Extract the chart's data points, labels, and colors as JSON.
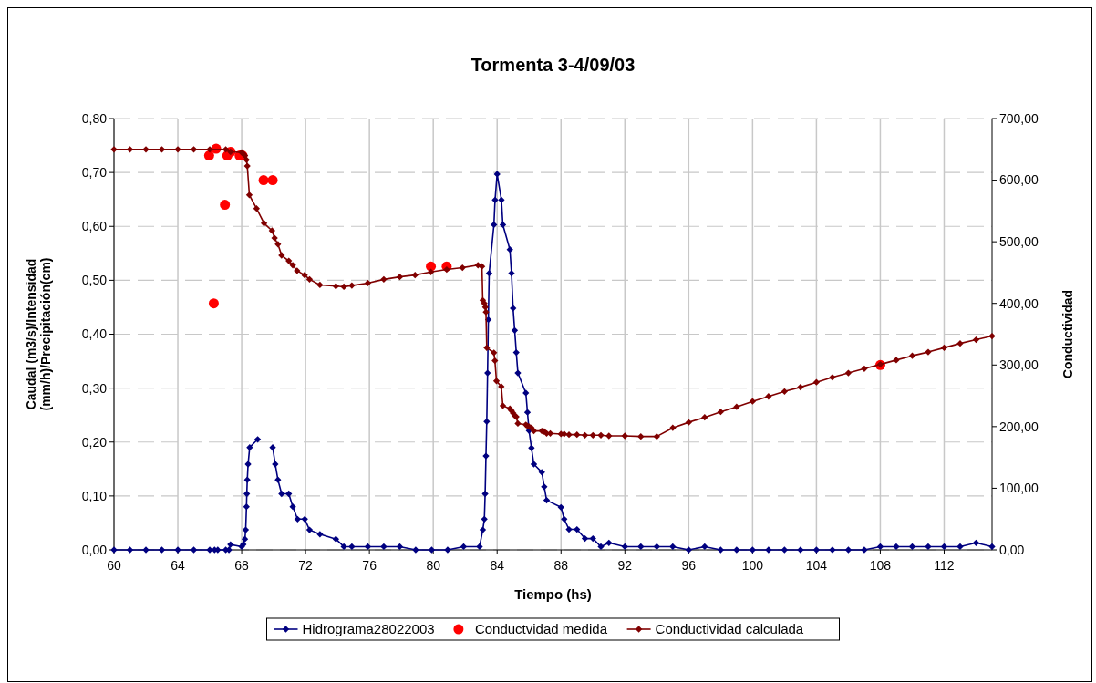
{
  "chart_data": {
    "type": "line",
    "title": "Tormenta 3-4/09/03",
    "xlabel": "Tiempo (hs)",
    "ylabel": "Caudal (m3/s)/Intensidad (mm/h)/Precipitación(cm)",
    "y2label": "Conductividad",
    "xlim": [
      60,
      115
    ],
    "xticks": [
      60,
      64,
      68,
      72,
      76,
      80,
      84,
      88,
      92,
      96,
      100,
      104,
      108,
      112
    ],
    "ylim": [
      0,
      0.8
    ],
    "yticks": [
      {
        "value": 0,
        "label": "0,00"
      },
      {
        "value": 0.1,
        "label": "0,10"
      },
      {
        "value": 0.2,
        "label": "0,20"
      },
      {
        "value": 0.3,
        "label": "0,30"
      },
      {
        "value": 0.4,
        "label": "0,40"
      },
      {
        "value": 0.5,
        "label": "0,50"
      },
      {
        "value": 0.6,
        "label": "0,60"
      },
      {
        "value": 0.7,
        "label": "0,70"
      },
      {
        "value": 0.8,
        "label": "0,80"
      }
    ],
    "y2lim": [
      0,
      700
    ],
    "y2ticks": [
      {
        "value": 0,
        "label": "0,00"
      },
      {
        "value": 100,
        "label": "100,00"
      },
      {
        "value": 200,
        "label": "200,00"
      },
      {
        "value": 300,
        "label": "300,00"
      },
      {
        "value": 400,
        "label": "400,00"
      },
      {
        "value": 500,
        "label": "500,00"
      },
      {
        "value": 600,
        "label": "600,00"
      },
      {
        "value": 700,
        "label": "700,00"
      }
    ],
    "grid": true,
    "legend": "bottom",
    "series": [
      {
        "name": "Hidrograma28022003",
        "color": "#000080",
        "marker": "diamond",
        "x": [
          60,
          61,
          62,
          63,
          64,
          65,
          66,
          66.3,
          66.5,
          67,
          67.2,
          67.3,
          68,
          68.1,
          68.2,
          68.25,
          68.3,
          68.32,
          68.35,
          68.4,
          68.5,
          69,
          69.5,
          69.94,
          70.1,
          70.27,
          70.5,
          70.95,
          71.2,
          71.5,
          71.95,
          72.25,
          72.9,
          73.9,
          74.4,
          74.9,
          75.9,
          76.9,
          77.9,
          78.9,
          79.9,
          80.9,
          81.9,
          82.9,
          83.1,
          83.2,
          83.25,
          83.3,
          83.35,
          83.4,
          83.45,
          83.5,
          83.8,
          83.87,
          84,
          84.27,
          84.36,
          84.8,
          84.9,
          85,
          85.1,
          85.2,
          85.3,
          85.8,
          85.9,
          86,
          86.15,
          86.3,
          86.8,
          86.95,
          87.1,
          88,
          88.2,
          88.5,
          89,
          89.5,
          90,
          90.5,
          91,
          92,
          93,
          94,
          95,
          96,
          97,
          98,
          99,
          100,
          101,
          102,
          103,
          104,
          105,
          106,
          107,
          108,
          109,
          110,
          111,
          112,
          113,
          114,
          115
        ],
        "values": [
          0,
          0,
          0,
          0,
          0,
          0,
          0,
          0,
          0,
          0,
          0,
          0.01,
          0.006,
          0.01,
          0.02,
          0.037,
          0.08,
          0.104,
          0.13,
          0.159,
          0.19,
          0.205,
          null,
          0.19,
          0.159,
          0.13,
          0.104,
          0.104,
          0.08,
          0.057,
          0.057,
          0.037,
          0.029,
          0.02,
          0.006,
          0.006,
          0.006,
          0.006,
          0.006,
          0,
          0,
          0,
          0.006,
          0.006,
          0.037,
          0.057,
          0.104,
          0.174,
          0.238,
          0.328,
          0.427,
          0.513,
          0.603,
          0.649,
          0.697,
          0.649,
          0.603,
          0.557,
          0.513,
          0.448,
          0.407,
          0.366,
          0.328,
          0.291,
          0.255,
          0.221,
          0.189,
          0.159,
          0.144,
          0.117,
          0.092,
          0.079,
          0.057,
          0.038,
          0.038,
          0.021,
          0.021,
          0.006,
          0.013,
          0.006,
          0.006,
          0.006,
          0.006,
          0,
          0.006,
          0,
          0,
          0,
          0,
          0,
          0,
          0,
          0,
          0,
          0,
          0.006,
          0.006,
          0.006,
          0.006,
          0.006,
          0.006,
          0.013,
          0.006
        ]
      },
      {
        "name": "Conductvidad medida",
        "type": "scatter",
        "axis": "y2",
        "color": "#ff0000",
        "marker": "circle",
        "x": [
          65.96,
          66.25,
          66.4,
          66.95,
          67.1,
          67.3,
          67.87,
          68.05,
          69.37,
          69.94,
          79.85,
          80.84,
          108
        ],
        "values": [
          640,
          400,
          651,
          560,
          640,
          646,
          640,
          640,
          600,
          600,
          460,
          460,
          300
        ]
      },
      {
        "name": "Conductividad calculada",
        "axis": "y2",
        "color": "#800000",
        "marker": "diamond",
        "x": [
          60,
          61,
          62,
          63,
          64,
          65,
          66,
          67,
          67.3,
          68,
          68.1,
          68.2,
          68.3,
          68.35,
          68.48,
          68.93,
          69.4,
          69.9,
          70.06,
          70.27,
          70.5,
          70.95,
          71.2,
          71.47,
          71.94,
          72.25,
          72.9,
          73.9,
          74.4,
          74.9,
          75.9,
          76.9,
          77.9,
          78.86,
          79.85,
          80.84,
          81.83,
          82.8,
          83.05,
          83.1,
          83.2,
          83.26,
          83.3,
          83.35,
          83.8,
          83.86,
          83.96,
          84.26,
          84.36,
          84.8,
          84.9,
          85,
          85.1,
          85.2,
          85.3,
          85.8,
          85.9,
          86,
          86.15,
          86.3,
          86.8,
          86.95,
          87.1,
          87.33,
          88,
          88.2,
          88.5,
          89,
          89.5,
          90,
          90.5,
          91,
          92,
          93,
          94,
          95,
          96,
          97,
          98,
          99,
          100,
          101,
          102,
          103,
          104,
          105,
          106,
          107,
          108,
          109,
          110,
          111,
          112,
          113,
          114,
          115
        ],
        "values": [
          650,
          650,
          650,
          650,
          650,
          650,
          650,
          650,
          646,
          645,
          643,
          640,
          633,
          623,
          576,
          554,
          530,
          518,
          506,
          496,
          478,
          469,
          462,
          453,
          446,
          439,
          430,
          428,
          427,
          429,
          433,
          439,
          443,
          446,
          451,
          455,
          458,
          462,
          460,
          405,
          400,
          394,
          386,
          328,
          320,
          307,
          274,
          265,
          234,
          229,
          226,
          222,
          218,
          216,
          205,
          203,
          201,
          200,
          198,
          193,
          193,
          192,
          189,
          189,
          188,
          188,
          187,
          187,
          186,
          186,
          186,
          185,
          185,
          184,
          184,
          198,
          207,
          215,
          224,
          232,
          241,
          249,
          257,
          264,
          272,
          280,
          287,
          294,
          301,
          308,
          315,
          321,
          328,
          335,
          341,
          347
        ]
      }
    ]
  }
}
